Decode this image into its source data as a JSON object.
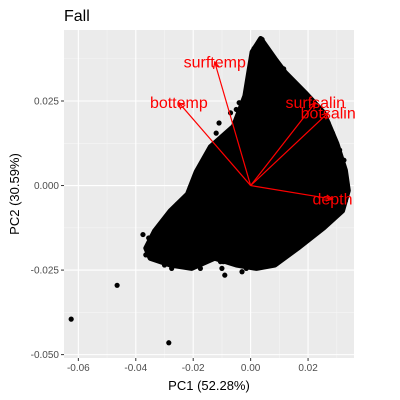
{
  "chart_data": {
    "type": "scatter",
    "title": "Fall",
    "xlabel": "PC1 (52.28%)",
    "ylabel": "PC2 (30.59%)",
    "xlim": [
      -0.065,
      0.036
    ],
    "ylim": [
      -0.051,
      0.046
    ],
    "x_ticks": [
      {
        "value": -0.06,
        "label": "-0.06"
      },
      {
        "value": -0.04,
        "label": "-0.04"
      },
      {
        "value": -0.02,
        "label": "-0.02"
      },
      {
        "value": 0.0,
        "label": "0.00"
      },
      {
        "value": 0.02,
        "label": "0.02"
      }
    ],
    "y_ticks": [
      {
        "value": -0.05,
        "label": "-0.050"
      },
      {
        "value": -0.025,
        "label": "-0.025"
      },
      {
        "value": 0.0,
        "label": "0.000"
      },
      {
        "value": 0.025,
        "label": "0.025"
      }
    ],
    "grid": true,
    "background_color": "#ebebeb",
    "point_color": "#000000",
    "vector_color": "#ff0000",
    "points_outliers": [
      {
        "x": -0.0625,
        "y": -0.0395
      },
      {
        "x": -0.0465,
        "y": -0.0295
      },
      {
        "x": -0.0285,
        "y": -0.0465
      }
    ],
    "points_cloud": {
      "approximate": true,
      "polygon": [
        [
          -0.0365,
          -0.0185
        ],
        [
          -0.0335,
          -0.0135
        ],
        [
          -0.028,
          -0.0075
        ],
        [
          -0.022,
          -0.0025
        ],
        [
          -0.019,
          0.004
        ],
        [
          -0.014,
          0.0115
        ],
        [
          -0.006,
          0.0175
        ],
        [
          -0.002,
          0.0265
        ],
        [
          0.0005,
          0.0395
        ],
        [
          0.0035,
          0.0435
        ],
        [
          0.0085,
          0.0375
        ],
        [
          0.012,
          0.0335
        ],
        [
          0.019,
          0.0275
        ],
        [
          0.0255,
          0.0215
        ],
        [
          0.03,
          0.0125
        ],
        [
          0.033,
          0.0045
        ],
        [
          0.034,
          -0.0015
        ],
        [
          0.032,
          -0.0075
        ],
        [
          0.0255,
          -0.0125
        ],
        [
          0.0165,
          -0.0185
        ],
        [
          0.0085,
          -0.0235
        ],
        [
          0.002,
          -0.0245
        ],
        [
          -0.005,
          -0.0235
        ],
        [
          -0.0125,
          -0.0215
        ],
        [
          -0.0205,
          -0.0245
        ],
        [
          -0.028,
          -0.0235
        ],
        [
          -0.035,
          -0.0215
        ]
      ],
      "sparse_points": [
        [
          -0.0375,
          -0.0145
        ],
        [
          -0.0355,
          -0.0155
        ],
        [
          -0.0365,
          -0.0205
        ],
        [
          -0.032,
          -0.0195
        ],
        [
          -0.03,
          -0.0235
        ],
        [
          -0.0285,
          -0.0175
        ],
        [
          -0.0275,
          -0.0245
        ],
        [
          -0.024,
          -0.0205
        ],
        [
          -0.0225,
          -0.0235
        ],
        [
          -0.02,
          -0.0185
        ],
        [
          -0.0195,
          -0.0225
        ],
        [
          -0.0175,
          -0.0245
        ],
        [
          -0.015,
          -0.0215
        ],
        [
          -0.0105,
          -0.0225
        ],
        [
          -0.0095,
          -0.0205
        ],
        [
          -0.01,
          -0.0245
        ],
        [
          -0.009,
          -0.0265
        ],
        [
          -0.0095,
          -0.0225
        ],
        [
          -0.0015,
          -0.0245
        ],
        [
          -0.003,
          -0.0255
        ],
        [
          -0.0255,
          -0.0055
        ],
        [
          -0.0255,
          -0.0075
        ],
        [
          -0.021,
          -0.0005
        ],
        [
          -0.0235,
          -0.0045
        ],
        [
          -0.027,
          -0.0085
        ],
        [
          -0.012,
          0.0155
        ],
        [
          -0.011,
          0.0185
        ],
        [
          -0.007,
          0.0215
        ],
        [
          -0.005,
          0.0225
        ],
        [
          -0.004,
          0.0245
        ],
        [
          0.0012,
          0.0405
        ],
        [
          0.0028,
          0.0418
        ],
        [
          0.004,
          0.0432
        ],
        [
          0.0055,
          0.0395
        ],
        [
          0.007,
          0.0385
        ],
        [
          0.0095,
          0.0355
        ],
        [
          0.0115,
          0.0345
        ],
        [
          0.013,
          0.0305
        ],
        [
          0.0165,
          0.0245
        ],
        [
          0.02,
          0.0235
        ],
        [
          0.0245,
          0.0205
        ],
        [
          0.027,
          0.0185
        ],
        [
          0.0285,
          0.0155
        ],
        [
          0.031,
          0.0105
        ],
        [
          0.0325,
          0.0075
        ],
        [
          0.033,
          0.0015
        ],
        [
          0.033,
          -0.0045
        ],
        [
          0.0315,
          -0.0055
        ],
        [
          0.0285,
          -0.0095
        ],
        [
          0.024,
          -0.0125
        ],
        [
          0.021,
          -0.0145
        ],
        [
          0.0175,
          -0.0175
        ],
        [
          0.0145,
          -0.0165
        ],
        [
          0.011,
          -0.0205
        ],
        [
          0.007,
          -0.0225
        ],
        [
          0.0045,
          -0.0215
        ],
        [
          0.0015,
          -0.0235
        ],
        [
          -0.0035,
          -0.0215
        ],
        [
          -0.0075,
          -0.0195
        ],
        [
          -0.0145,
          -0.0175
        ]
      ]
    },
    "vectors": [
      {
        "label": "surftemp",
        "x": -0.0125,
        "y": 0.0365
      },
      {
        "label": "bottemp",
        "x": -0.025,
        "y": 0.0245
      },
      {
        "label": "surfsalin",
        "x": 0.0225,
        "y": 0.0245
      },
      {
        "label": "botsalin",
        "x": 0.027,
        "y": 0.0215
      },
      {
        "label": "depth",
        "x": 0.0285,
        "y": -0.004
      }
    ]
  }
}
